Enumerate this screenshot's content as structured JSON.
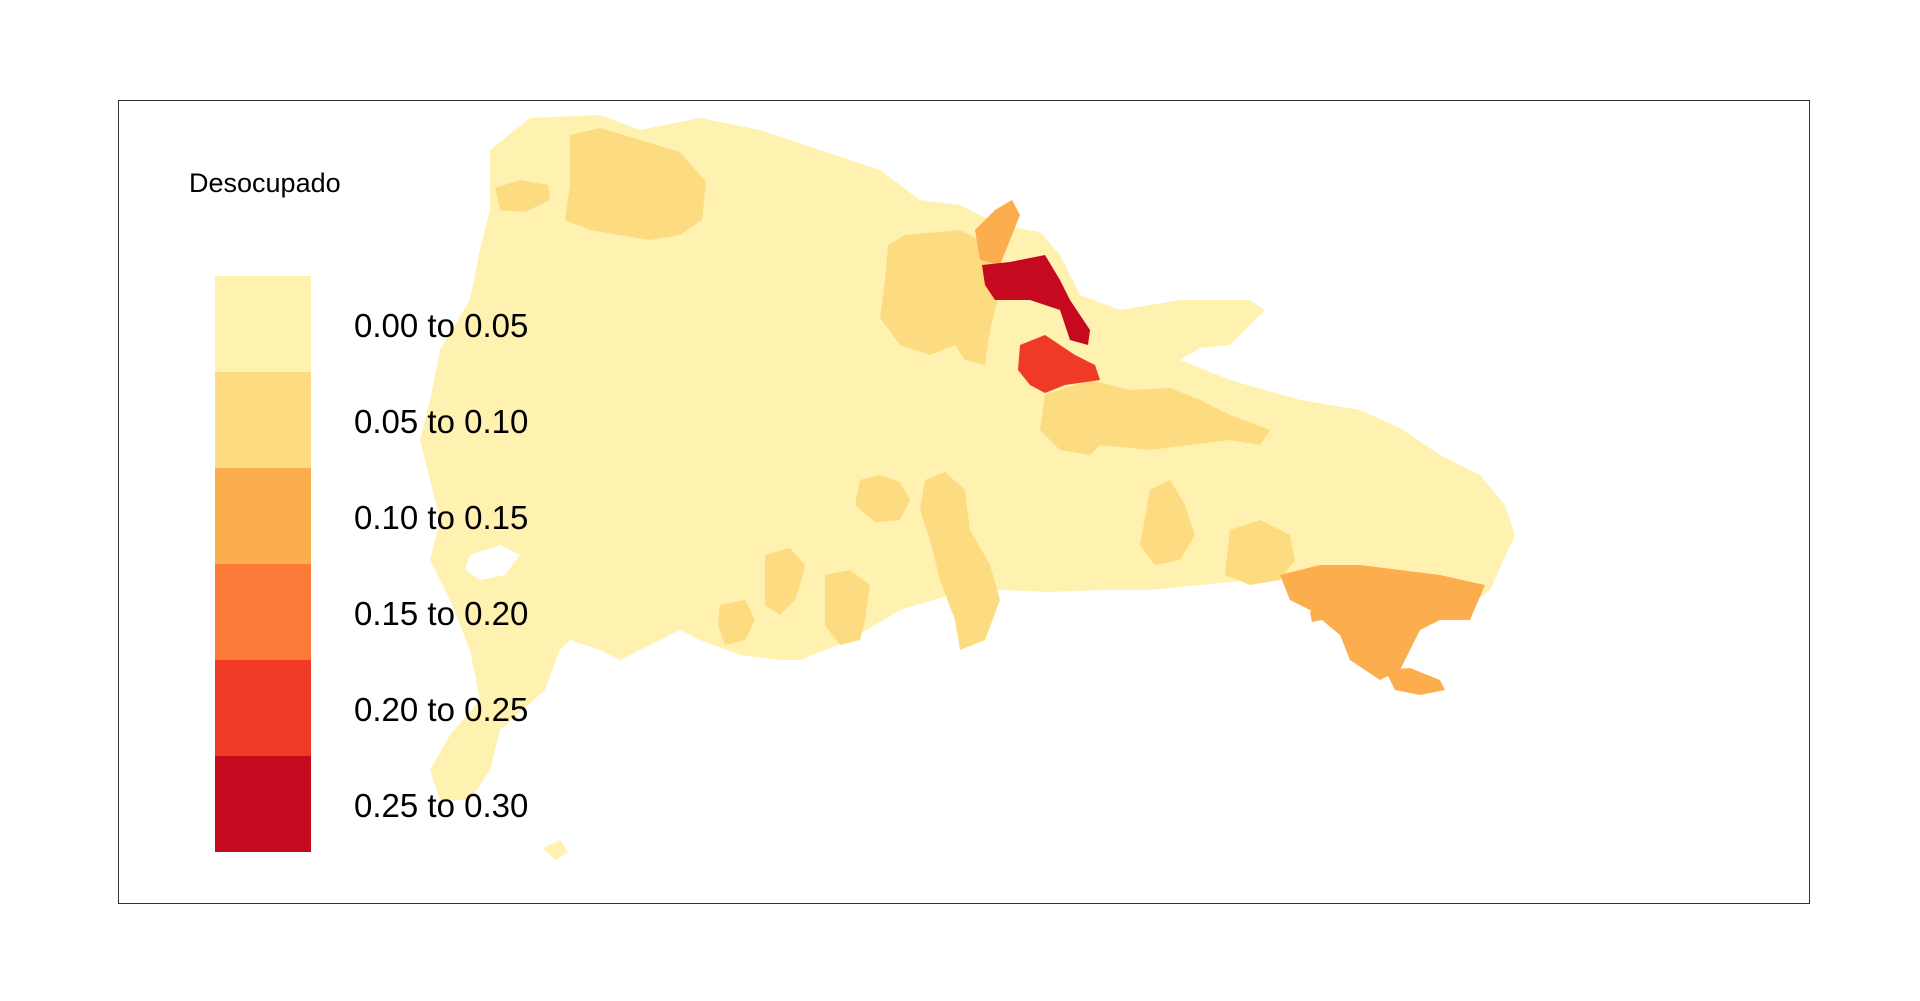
{
  "legend": {
    "title": "Desocupado",
    "classes": [
      {
        "label": "0.00 to 0.05",
        "color": "#FFF1B0"
      },
      {
        "label": "0.05 to 0.10",
        "color": "#FDDB80"
      },
      {
        "label": "0.10 to 0.15",
        "color": "#FCAE4E"
      },
      {
        "label": "0.15 to 0.20",
        "color": "#FB7A37"
      },
      {
        "label": "0.20 to 0.25",
        "color": "#EF3A25"
      },
      {
        "label": "0.25 to 0.30",
        "color": "#C5091F"
      }
    ]
  }
}
